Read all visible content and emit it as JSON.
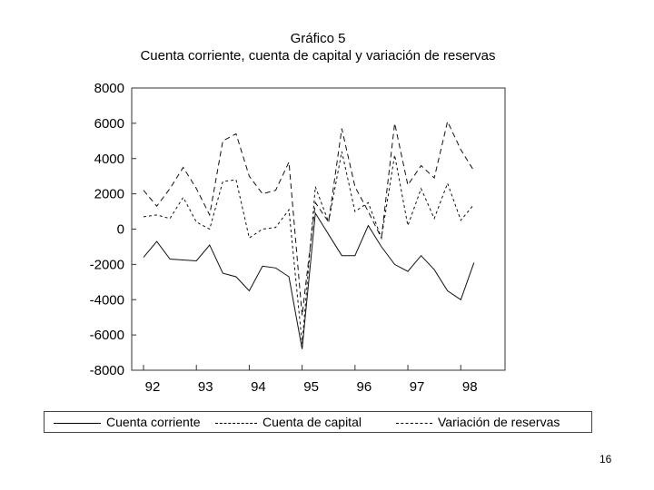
{
  "chart_data": {
    "type": "line",
    "title": "Gráfico 5",
    "subtitle": "Cuenta corriente, cuenta de capital y variación de reservas",
    "xlabel": "",
    "ylabel": "",
    "ylim": [
      -8000,
      8000
    ],
    "yticks": [
      "8000",
      "6000",
      "4000",
      "2000",
      "0",
      "-2000",
      "-4000",
      "-6000",
      "-8000"
    ],
    "xticks": [
      "92",
      "93",
      "94",
      "95",
      "96",
      "97",
      "98"
    ],
    "xlim": [
      92,
      98.7
    ],
    "grid": false,
    "legend_position": "bottom",
    "x": [
      92.0,
      92.25,
      92.5,
      92.75,
      93.0,
      93.25,
      93.5,
      93.75,
      94.0,
      94.25,
      94.5,
      94.75,
      95.0,
      95.25,
      95.5,
      95.75,
      96.0,
      96.25,
      96.5,
      96.75,
      97.0,
      97.25,
      97.5,
      97.75,
      98.0,
      98.25
    ],
    "series": [
      {
        "name": "Cuenta corriente",
        "style": "solid",
        "values": [
          -1600,
          -700,
          -1700,
          -1750,
          -1800,
          -900,
          -2500,
          -2700,
          -3500,
          -2100,
          -2200,
          -2700,
          -6800,
          900,
          -300,
          -1500,
          -1500,
          200,
          -1000,
          -2000,
          -2400,
          -1500,
          -2300,
          -3500,
          -4000,
          -1900
        ]
      },
      {
        "name": "Cuenta de capital",
        "style": "dashed",
        "values": [
          700,
          800,
          600,
          1800,
          400,
          0,
          2700,
          2800,
          -500,
          0,
          100,
          1100,
          -6500,
          2400,
          400,
          4400,
          1000,
          1500,
          -500,
          4200,
          200,
          2300,
          600,
          2600,
          500,
          1400
        ]
      },
      {
        "name": "Variación de reservas",
        "style": "longdash",
        "values": [
          2200,
          1300,
          2300,
          3500,
          2300,
          800,
          5000,
          5400,
          3000,
          2000,
          2200,
          3800,
          -4900,
          1500,
          400,
          5700,
          2400,
          1000,
          -500,
          6000,
          2500,
          3600,
          2900,
          6100,
          4500,
          3300
        ]
      }
    ]
  },
  "legend": {
    "cuenta_corriente": "Cuenta corriente",
    "cuenta_capital": "Cuenta de capital",
    "variacion_reservas": "Variación de reservas"
  },
  "page_number": "16"
}
